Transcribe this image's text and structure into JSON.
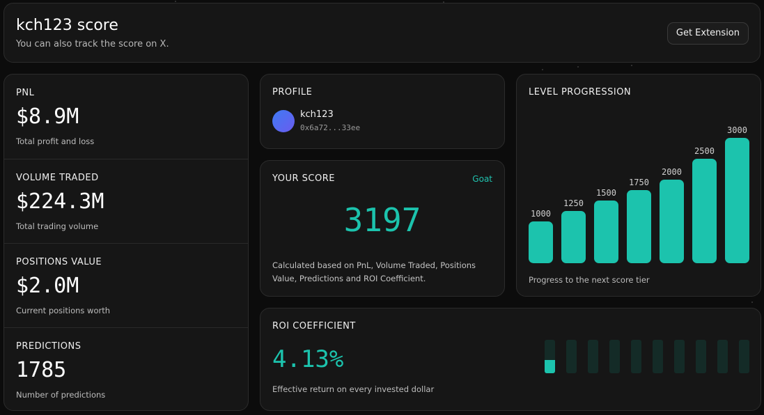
{
  "header": {
    "title": "kch123 score",
    "subtitle": "You can also track the score on X.",
    "button_label": "Get Extension"
  },
  "stats": [
    {
      "label": "PNL",
      "value": "$8.9M",
      "desc": "Total profit and loss"
    },
    {
      "label": "VOLUME TRADED",
      "value": "$224.3M",
      "desc": "Total trading volume"
    },
    {
      "label": "POSITIONS VALUE",
      "value": "$2.0M",
      "desc": "Current positions worth"
    },
    {
      "label": "PREDICTIONS",
      "value": "1785",
      "desc": "Number of predictions"
    }
  ],
  "profile": {
    "label": "PROFILE",
    "username": "kch123",
    "address": "0x6a72...33ee"
  },
  "score": {
    "label": "YOUR SCORE",
    "tier": "Goat",
    "value": "3197",
    "description": "Calculated based on PnL, Volume Traded, Positions Value, Predictions and ROI Coefficient."
  },
  "level": {
    "label": "LEVEL PROGRESSION",
    "caption": "Progress to the next score tier",
    "accent": "#1cc3ad"
  },
  "chart_data": {
    "type": "bar",
    "categories": [
      "1000",
      "1250",
      "1500",
      "1750",
      "2000",
      "2500",
      "3000"
    ],
    "values": [
      1000,
      1250,
      1500,
      1750,
      2000,
      2500,
      3000
    ],
    "title": "LEVEL PROGRESSION",
    "xlabel": "",
    "ylabel": ""
  },
  "roi": {
    "label": "ROI COEFFICIENT",
    "value": "4.13%",
    "desc": "Effective return on every invested dollar",
    "segments_total": 10,
    "first_segment_fill": 0.4
  }
}
